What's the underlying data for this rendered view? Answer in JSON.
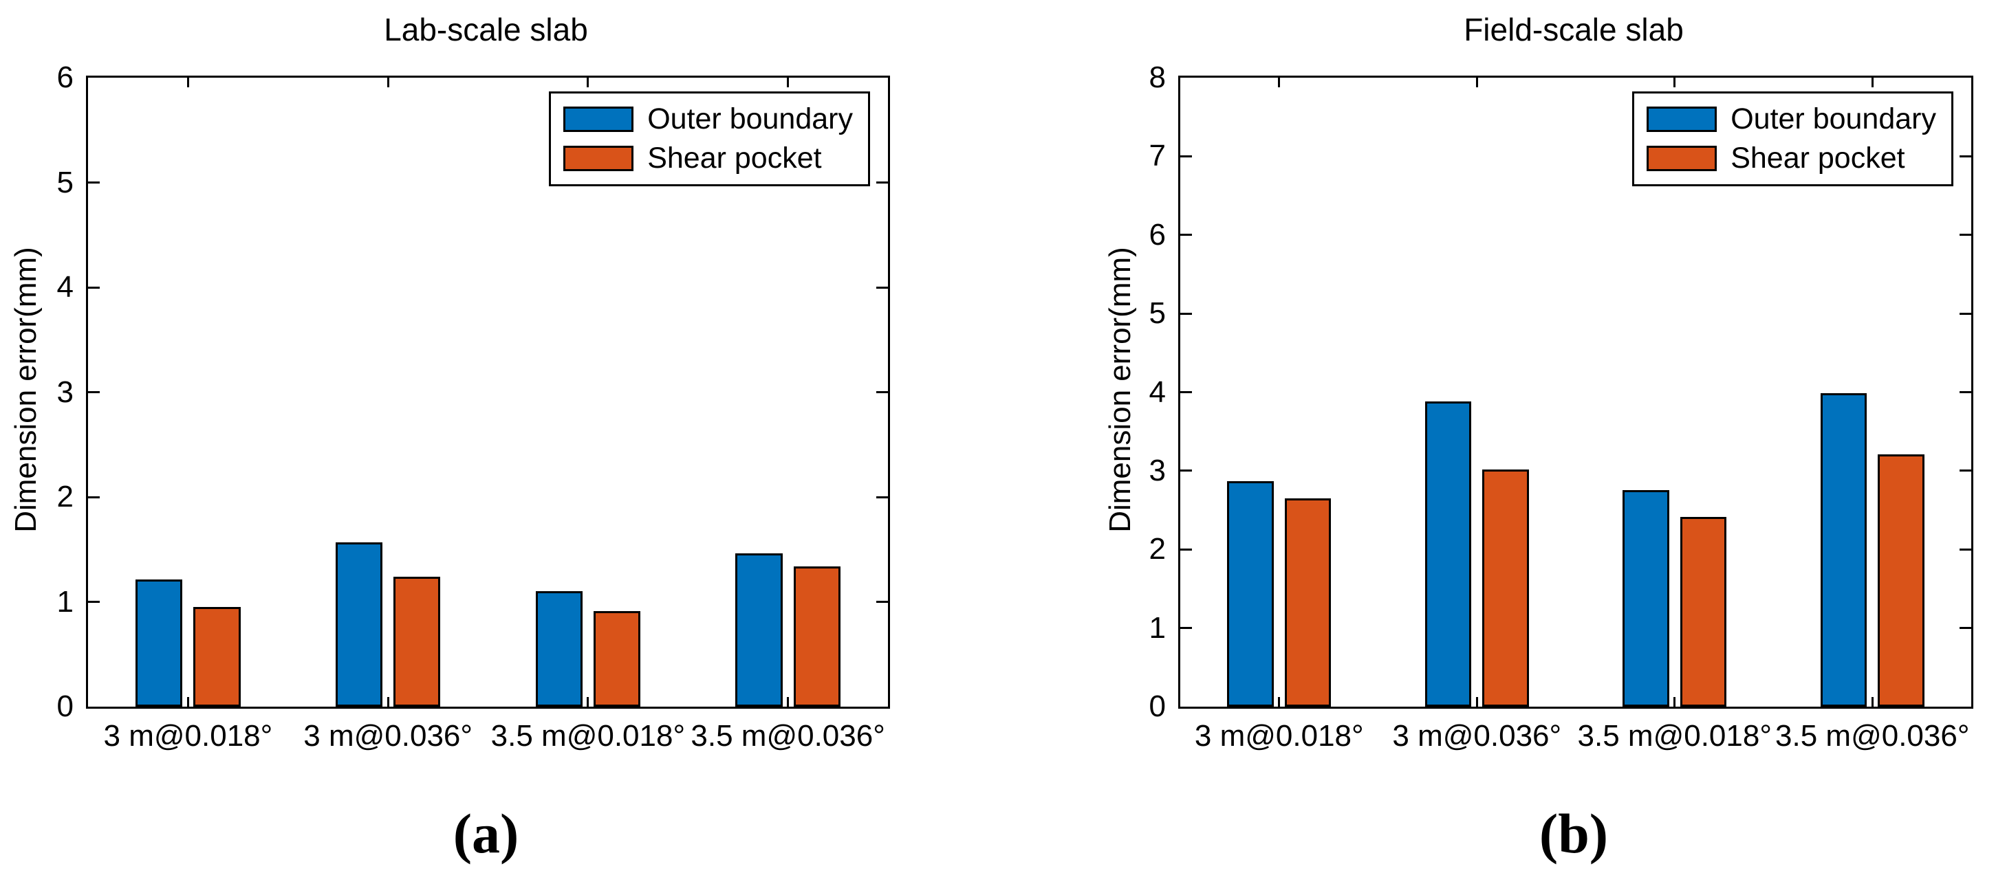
{
  "figure": {
    "background": "#ffffff",
    "axis_color": "#000000",
    "text_color": "#000000"
  },
  "chart_data": [
    {
      "id": "a",
      "type": "bar",
      "title": "Lab-scale slab",
      "xlabel": "",
      "ylabel": "Dimension error(mm)",
      "ylim": [
        0,
        6
      ],
      "ytick_step": 1,
      "yticks": [
        0,
        1,
        2,
        3,
        4,
        5,
        6
      ],
      "grid": false,
      "legend_position": "top-right-inside",
      "categories": [
        "3 m@0.018°",
        "3 m@0.036°",
        "3.5 m@0.018°",
        "3.5 m@0.036°"
      ],
      "series": [
        {
          "name": "Outer boundary",
          "color": "#0072BD",
          "values": [
            1.21,
            1.57,
            1.1,
            1.46
          ]
        },
        {
          "name": "Shear pocket",
          "color": "#D95319",
          "values": [
            0.95,
            1.24,
            0.91,
            1.34
          ]
        }
      ],
      "caption": "(a)"
    },
    {
      "id": "b",
      "type": "bar",
      "title": "Field-scale slab",
      "xlabel": "",
      "ylabel": "Dimension error(mm)",
      "ylim": [
        0,
        8
      ],
      "ytick_step": 1,
      "yticks": [
        0,
        1,
        2,
        3,
        4,
        5,
        6,
        7,
        8
      ],
      "grid": false,
      "legend_position": "top-right-inside",
      "categories": [
        "3 m@0.018°",
        "3 m@0.036°",
        "3.5 m@0.018°",
        "3.5 m@0.036°"
      ],
      "series": [
        {
          "name": "Outer boundary",
          "color": "#0072BD",
          "values": [
            2.87,
            3.88,
            2.75,
            3.99
          ]
        },
        {
          "name": "Shear pocket",
          "color": "#D95319",
          "values": [
            2.65,
            3.02,
            2.41,
            3.21
          ]
        }
      ],
      "caption": "(b)"
    }
  ]
}
